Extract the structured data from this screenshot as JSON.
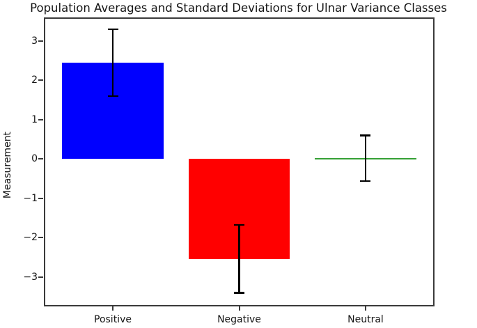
{
  "chart_data": {
    "type": "bar",
    "title": "Population Averages and Standard Deviations for Ulnar Variance Classes",
    "xlabel": "",
    "ylabel": "Measurement",
    "categories": [
      "Positive",
      "Negative",
      "Neutral"
    ],
    "values": [
      2.45,
      -2.54,
      0.02
    ],
    "errors": [
      0.85,
      0.86,
      0.58
    ],
    "bar_colors": [
      "#0000ff",
      "#ff0000",
      "#35a035"
    ],
    "error_color": "#000000",
    "axis_color": "#3a3a3a",
    "yticks": [
      3,
      2,
      1,
      0,
      -1,
      -2,
      -3
    ],
    "ylim": [
      -3.73,
      3.58
    ],
    "xlim": [
      -0.54,
      2.54
    ],
    "bar_width": 0.8,
    "grid": false,
    "legend": null
  }
}
